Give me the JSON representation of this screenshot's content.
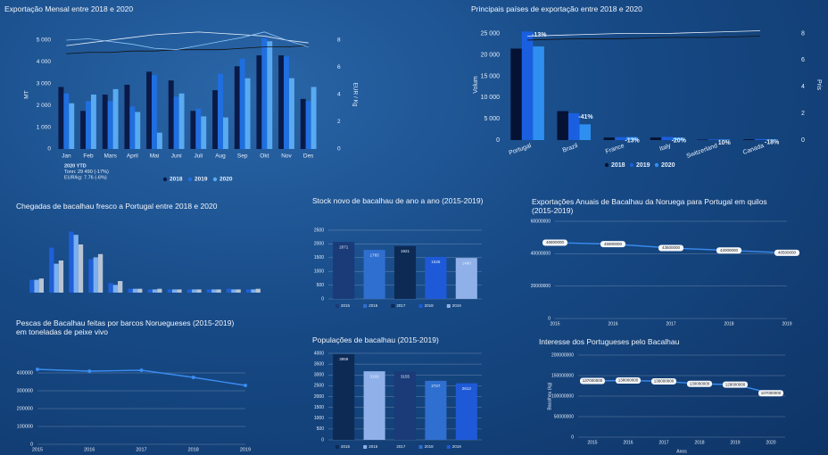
{
  "chart_data": [
    {
      "type": "bar",
      "title": "Exportação Mensal entre 2018 e 2020",
      "categories": [
        "Jan",
        "Feb",
        "Mars",
        "April",
        "Mai",
        "Juni",
        "Juli",
        "Aug",
        "Sep",
        "Okt",
        "Nov",
        "Des"
      ],
      "series": [
        {
          "name": "2018",
          "color": "#0a1a48",
          "values": [
            2850,
            1750,
            2500,
            2950,
            3550,
            3150,
            1750,
            2700,
            3800,
            4300,
            4300,
            2300
          ]
        },
        {
          "name": "2019",
          "color": "#1f6fe0",
          "values": [
            2550,
            2200,
            2200,
            1950,
            3400,
            2400,
            1850,
            3450,
            4150,
            5100,
            4250,
            2200
          ]
        },
        {
          "name": "2020",
          "color": "#5aaaf0",
          "values": [
            2100,
            2500,
            2750,
            1700,
            750,
            2550,
            1500,
            1450,
            3250,
            4950,
            3250,
            2850
          ]
        }
      ],
      "lines": [
        {
          "color": "#111111",
          "values": [
            7.0,
            7.1,
            7.1,
            7.2,
            7.2,
            7.3,
            7.3,
            7.3,
            7.4,
            7.5,
            7.5,
            7.6
          ]
        },
        {
          "color": "#e8eef8",
          "values": [
            7.6,
            7.8,
            8.0,
            8.2,
            8.4,
            8.5,
            8.6,
            8.5,
            8.4,
            8.3,
            8.0,
            7.8
          ]
        },
        {
          "color": "#8fc4f5",
          "values": [
            8.0,
            8.1,
            7.9,
            7.7,
            7.4,
            7.3,
            7.6,
            7.9,
            8.2,
            8.6,
            8.0,
            7.5
          ]
        }
      ],
      "ylabel": "MT",
      "y2label": "EUR / Kg",
      "ylim": [
        0,
        5000
      ],
      "yticks": [
        0,
        {
          "value": 1000,
          "label": "1 000"
        },
        {
          "value": 2000,
          "label": "2 000"
        },
        {
          "value": 3000,
          "label": "3 000"
        },
        {
          "value": 4000,
          "label": "4 000"
        },
        {
          "value": 5000,
          "label": "5 000"
        }
      ],
      "y2lim": [
        0,
        8
      ],
      "y2ticks": [
        0,
        2,
        4,
        6,
        8
      ],
      "annotations": [
        "2020 YTD",
        "Tonn: 29 490 (-17%)",
        "EUR/kg: 7.76 (-6%)"
      ],
      "grid": false
    },
    {
      "type": "bar",
      "title": "Principais países de exportação entre 2018 e 2020",
      "categories": [
        "Portugal",
        "Brazil",
        "France",
        "Italy",
        "Switzerland",
        "Canada"
      ],
      "series": [
        {
          "name": "2018",
          "color": "#061233",
          "values": [
            21500,
            6800,
            600,
            600,
            100,
            200
          ]
        },
        {
          "name": "2019",
          "color": "#1a5fe0",
          "values": [
            25500,
            6300,
            700,
            750,
            150,
            250
          ]
        },
        {
          "name": "2020",
          "color": "#2f8ff0",
          "values": [
            22000,
            3700,
            700,
            600,
            150,
            200
          ]
        }
      ],
      "lines": [
        {
          "color": "#111111",
          "values": [
            7.5,
            7.6,
            7.6,
            7.7,
            7.7,
            7.8
          ]
        },
        {
          "color": "#e8eef8",
          "values": [
            7.8,
            7.9,
            8.0,
            8.0,
            8.1,
            8.2
          ]
        }
      ],
      "pct_labels": [
        "-13%",
        "-41%",
        "-13%",
        "-20%",
        "10%",
        "-18%"
      ],
      "ylabel": "Volum",
      "y2label": "Pris",
      "ylim": [
        0,
        26000
      ],
      "yticks": [
        0,
        {
          "value": 5000,
          "label": "5 000"
        },
        {
          "value": 10000,
          "label": "10 000"
        },
        {
          "value": 15000,
          "label": "15 000"
        },
        {
          "value": 20000,
          "label": "20 000"
        },
        {
          "value": 25000,
          "label": "25 000"
        }
      ],
      "y2lim": [
        0,
        8.3
      ],
      "y2ticks": [
        0,
        2,
        4,
        6,
        8
      ],
      "grid": false
    },
    {
      "type": "bar",
      "title": "Chegadas de bacalhau fresco a Portugal entre 2018 e 2020",
      "series": [
        {
          "color": "#1f5fd8",
          "values": [
            20,
            70,
            95,
            52,
            15,
            6,
            5,
            5,
            5,
            5,
            6,
            5
          ]
        },
        {
          "color": "#7ab0f0",
          "values": [
            20,
            45,
            90,
            55,
            12,
            6,
            5,
            5,
            5,
            5,
            5,
            5
          ]
        },
        {
          "color": "#b8c4d4",
          "values": [
            22,
            50,
            75,
            60,
            18,
            6,
            6,
            5,
            5,
            5,
            5,
            6
          ]
        }
      ],
      "ylim": [
        0,
        100
      ],
      "grid": false
    },
    {
      "type": "bar",
      "title": "Stock novo de bacalhau de ano a ano (2015-2019)",
      "categories": [
        "2015",
        "2016",
        "2017",
        "2018",
        "2019"
      ],
      "values": [
        2071,
        1783,
        1921,
        1526,
        1490
      ],
      "colors": [
        "#1a3a78",
        "#2f6fd0",
        "#0d2a55",
        "#1e5ad8",
        "#8fb0e8"
      ],
      "ylim": [
        0,
        2500
      ],
      "yticks": [
        0,
        500,
        1000,
        1500,
        2000,
        2500
      ],
      "grid": true,
      "data_labels": true
    },
    {
      "type": "line",
      "title": "Exportações Anuais de Bacalhau da Noruega para Portugal em quilos (2015-2019)",
      "x": [
        2015,
        2016,
        2017,
        2018,
        2019
      ],
      "values": [
        46800000,
        45900000,
        43500000,
        42000000,
        40500000
      ],
      "color": "#3a8cf0",
      "xlim": [
        2015,
        2019
      ],
      "xticks": [
        2015,
        2016,
        2017,
        2018,
        2019
      ],
      "ylim": [
        0,
        60000000
      ],
      "yticks": [
        0,
        20000000,
        40000000,
        60000000
      ],
      "grid": true,
      "data_labels": true
    },
    {
      "type": "line",
      "title": "Pescas de Bacalhau feitas por barcos Noruegueses (2015-2019)",
      "subtitle": "em toneladas de peixe vivo",
      "x": [
        2015,
        2016,
        2017,
        2018,
        2019
      ],
      "values": [
        420000,
        410000,
        415000,
        375000,
        330000
      ],
      "color": "#3a8cf0",
      "xlim": [
        2015,
        2019
      ],
      "xticks": [
        2015,
        2016,
        2017,
        2018,
        2019
      ],
      "ylim": [
        0,
        450000
      ],
      "yticks": [
        0,
        100000,
        200000,
        300000,
        400000
      ],
      "grid": true
    },
    {
      "type": "bar",
      "title": "Populações de bacalhau (2015-2019)",
      "categories": [
        "2015",
        "2016",
        "2017",
        "2018",
        "2019"
      ],
      "values": [
        3959,
        3169,
        3155,
        2727,
        2613
      ],
      "colors": [
        "#0d2a55",
        "#8fb0e8",
        "#1a3a78",
        "#2f6fd0",
        "#1e5ad8"
      ],
      "ylim": [
        0,
        4000
      ],
      "yticks": [
        0,
        500,
        1000,
        1500,
        2000,
        2500,
        3000,
        3500,
        4000
      ],
      "grid": true,
      "data_labels": true
    },
    {
      "type": "line",
      "title": "Interesse dos Portugueses pelo Bacalhau",
      "x": [
        2015,
        2016,
        2017,
        2018,
        2019,
        2020
      ],
      "values": [
        137000000,
        138000000,
        136000000,
        130000000,
        128000000,
        107000000
      ],
      "color": "#3a8cf0",
      "xlim": [
        2014.6,
        2020.4
      ],
      "xticks": [
        2015,
        2016,
        2017,
        2018,
        2019,
        2020
      ],
      "ylim": [
        0,
        200000000
      ],
      "yticks": [
        0,
        50000000,
        100000000,
        150000000,
        200000000
      ],
      "ylabel": "Bacalhau (kg)",
      "xlabel": "Anos",
      "grid": true,
      "data_labels": true
    }
  ]
}
